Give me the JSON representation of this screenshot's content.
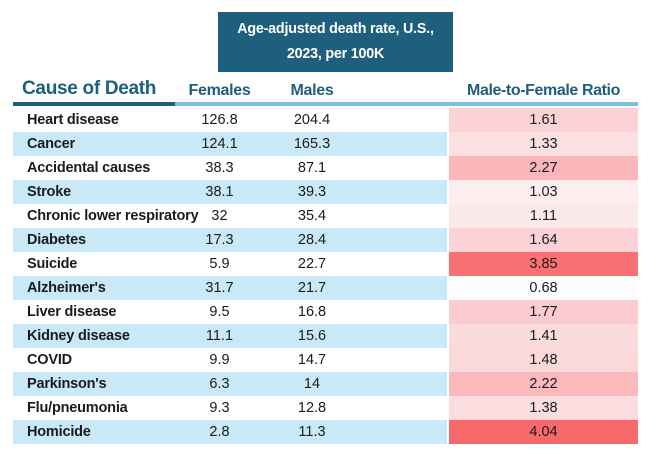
{
  "header": {
    "title_line1": "Age-adjusted death rate, U.S.,",
    "title_line2": "2023, per 100K"
  },
  "columns": {
    "cause": "Cause of Death",
    "females": "Females",
    "males": "Males",
    "ratio": "Male-to-Female Ratio"
  },
  "colors": {
    "title_box_bg": "#1E5F7E",
    "header_text": "#1E5F7E",
    "underline_dark": "#1E5F7E",
    "underline_light": "#7CBEDF",
    "row_alt_bg": "#C9E8F8",
    "ratio_scale_low": "#FCFCFF",
    "ratio_scale_high": "#F8696B",
    "body_text": "#1B1B1B"
  },
  "chart_data": {
    "type": "table",
    "title": "Age-adjusted death rate, U.S., 2023, per 100K",
    "columns": [
      "Cause of Death",
      "Females",
      "Males",
      "Male-to-Female Ratio"
    ],
    "rows": [
      {
        "cause": "Heart disease",
        "females": 126.8,
        "males": 204.4,
        "ratio": 1.61,
        "ratio_bg": "#FBD3D6"
      },
      {
        "cause": "Cancer",
        "females": 124.1,
        "males": 165.3,
        "ratio": 1.33,
        "ratio_bg": "#FBE0E2"
      },
      {
        "cause": "Accidental causes",
        "females": 38.3,
        "males": 87.1,
        "ratio": 2.27,
        "ratio_bg": "#FAB6B9"
      },
      {
        "cause": "Stroke",
        "females": 38.1,
        "males": 39.3,
        "ratio": 1.03,
        "ratio_bg": "#FCEDEF"
      },
      {
        "cause": "Chronic lower respiratory",
        "females": 32,
        "males": 35.4,
        "ratio": 1.11,
        "ratio_bg": "#FBE9EB"
      },
      {
        "cause": "Diabetes",
        "females": 17.3,
        "males": 28.4,
        "ratio": 1.64,
        "ratio_bg": "#FBD2D5"
      },
      {
        "cause": "Suicide",
        "females": 5.9,
        "males": 22.7,
        "ratio": 3.85,
        "ratio_bg": "#F87173"
      },
      {
        "cause": "Alzheimer's",
        "females": 31.7,
        "males": 21.7,
        "ratio": 0.68,
        "ratio_bg": "#FCFCFF"
      },
      {
        "cause": "Liver disease",
        "females": 9.5,
        "males": 16.8,
        "ratio": 1.77,
        "ratio_bg": "#FBCCCF"
      },
      {
        "cause": "Kidney disease",
        "females": 11.1,
        "males": 15.6,
        "ratio": 1.41,
        "ratio_bg": "#FBDCDE"
      },
      {
        "cause": "COVID",
        "females": 9.9,
        "males": 14.7,
        "ratio": 1.48,
        "ratio_bg": "#FBD9DB"
      },
      {
        "cause": "Parkinson's",
        "females": 6.3,
        "males": 14,
        "ratio": 2.22,
        "ratio_bg": "#FAB9BB"
      },
      {
        "cause": "Flu/pneumonia",
        "females": 9.3,
        "males": 12.8,
        "ratio": 1.38,
        "ratio_bg": "#FBDDE0"
      },
      {
        "cause": "Homicide",
        "females": 2.8,
        "males": 11.3,
        "ratio": 4.04,
        "ratio_bg": "#F8696B"
      }
    ]
  }
}
